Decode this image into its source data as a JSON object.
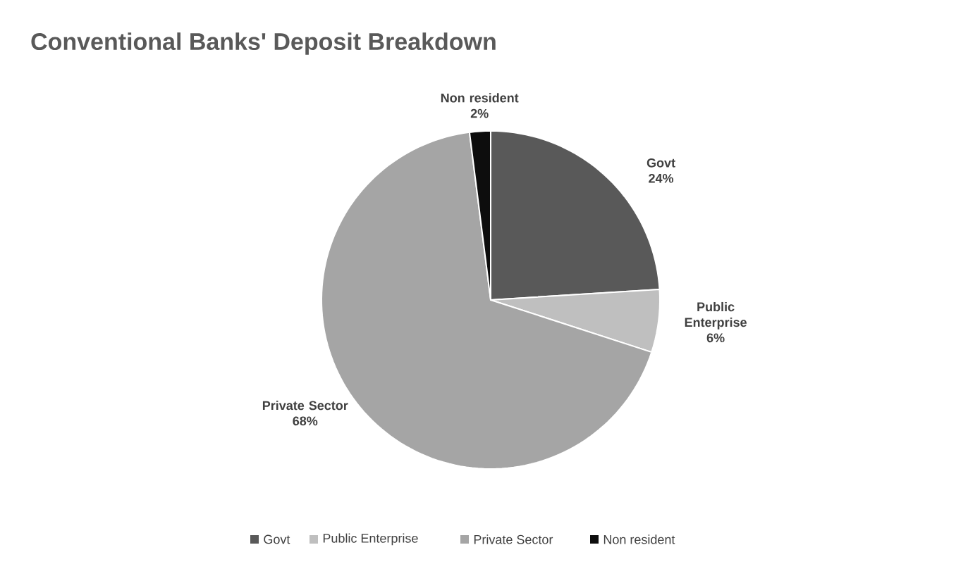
{
  "chart_data": {
    "type": "pie",
    "title": "Conventional Banks' Deposit Breakdown",
    "categories": [
      "Govt",
      "Public Enterprise",
      "Private Sector",
      "Non resident"
    ],
    "values": [
      24,
      6,
      68,
      2
    ],
    "value_labels": [
      "24%",
      "6%",
      "68%",
      "2%"
    ],
    "colors": [
      "#595959",
      "#bfbfbf",
      "#a5a5a5",
      "#0d0d0d"
    ],
    "legend": "bottom"
  }
}
